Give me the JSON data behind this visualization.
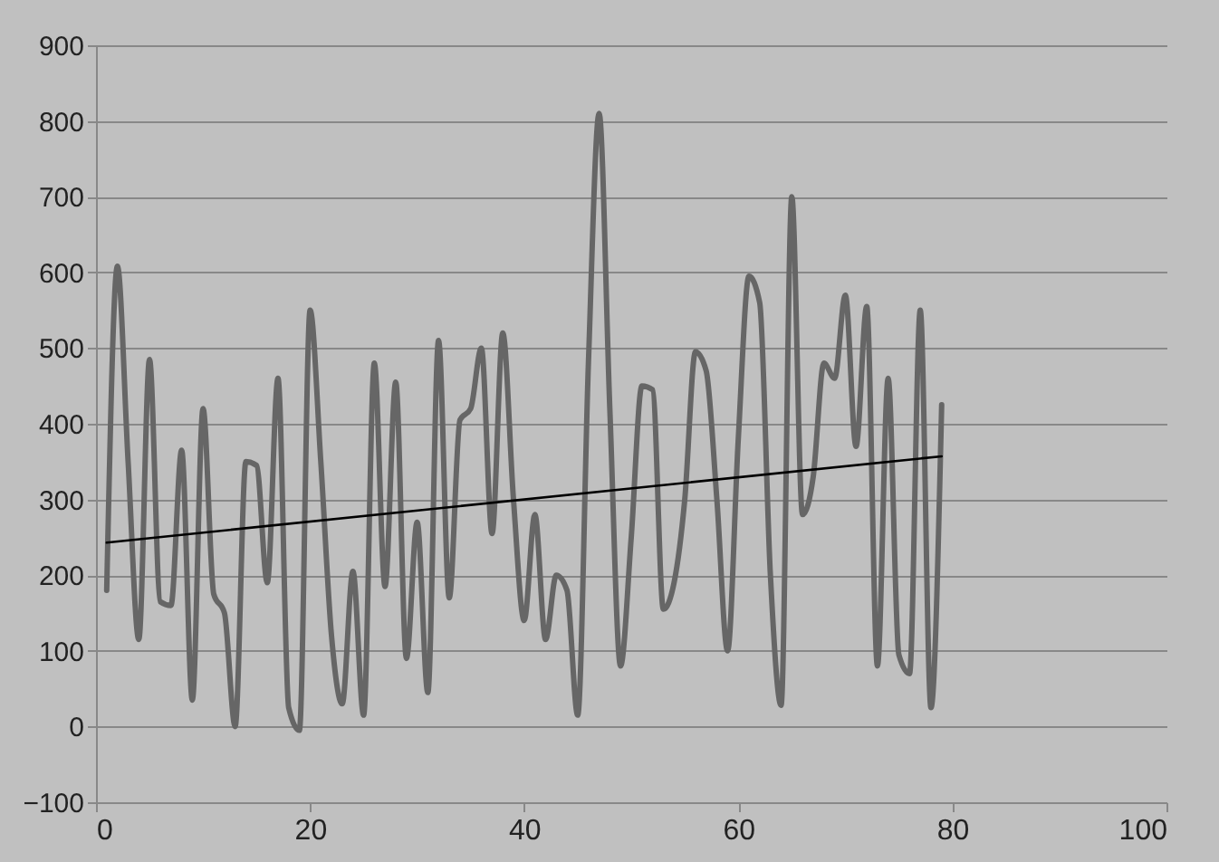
{
  "chart_data": {
    "type": "line",
    "x": [
      1,
      2,
      3,
      4,
      5,
      6,
      7,
      8,
      9,
      10,
      11,
      12,
      13,
      14,
      15,
      16,
      17,
      18,
      19,
      20,
      21,
      22,
      23,
      24,
      25,
      26,
      27,
      28,
      29,
      30,
      31,
      32,
      33,
      34,
      35,
      36,
      37,
      38,
      39,
      40,
      41,
      42,
      43,
      44,
      45,
      46,
      47,
      48,
      49,
      50,
      51,
      52,
      53,
      54,
      55,
      56,
      57,
      58,
      59,
      60,
      61,
      62,
      63,
      64,
      65,
      66,
      67,
      68,
      69,
      70,
      71,
      72,
      73,
      74,
      75,
      76,
      77,
      78,
      79
    ],
    "series": [
      {
        "color": "#666666",
        "values": [
          180,
          608,
          350,
          115,
          485,
          165,
          160,
          365,
          35,
          420,
          175,
          150,
          0,
          350,
          345,
          190,
          460,
          25,
          -5,
          550,
          350,
          120,
          30,
          205,
          15,
          480,
          185,
          455,
          90,
          270,
          45,
          510,
          170,
          405,
          420,
          500,
          255,
          520,
          300,
          140,
          280,
          115,
          200,
          180,
          15,
          480,
          810,
          420,
          80,
          250,
          450,
          445,
          155,
          190,
          300,
          495,
          470,
          300,
          100,
          380,
          595,
          560,
          200,
          28,
          700,
          280,
          330,
          480,
          460,
          570,
          370,
          555,
          80,
          460,
          95,
          70,
          550,
          25,
          425
        ]
      },
      {
        "type": "line",
        "color": "#000000",
        "x": [
          1,
          79
        ],
        "values": [
          243,
          357
        ]
      }
    ],
    "xlim": [
      0,
      100
    ],
    "xticks": [
      0,
      20,
      40,
      60,
      80,
      100
    ],
    "ylim": [
      -100,
      900
    ],
    "yticks": [
      -100,
      0,
      100,
      200,
      300,
      400,
      500,
      600,
      700,
      800,
      900
    ],
    "grid": "y",
    "marker": "none",
    "line_style": "solid"
  }
}
